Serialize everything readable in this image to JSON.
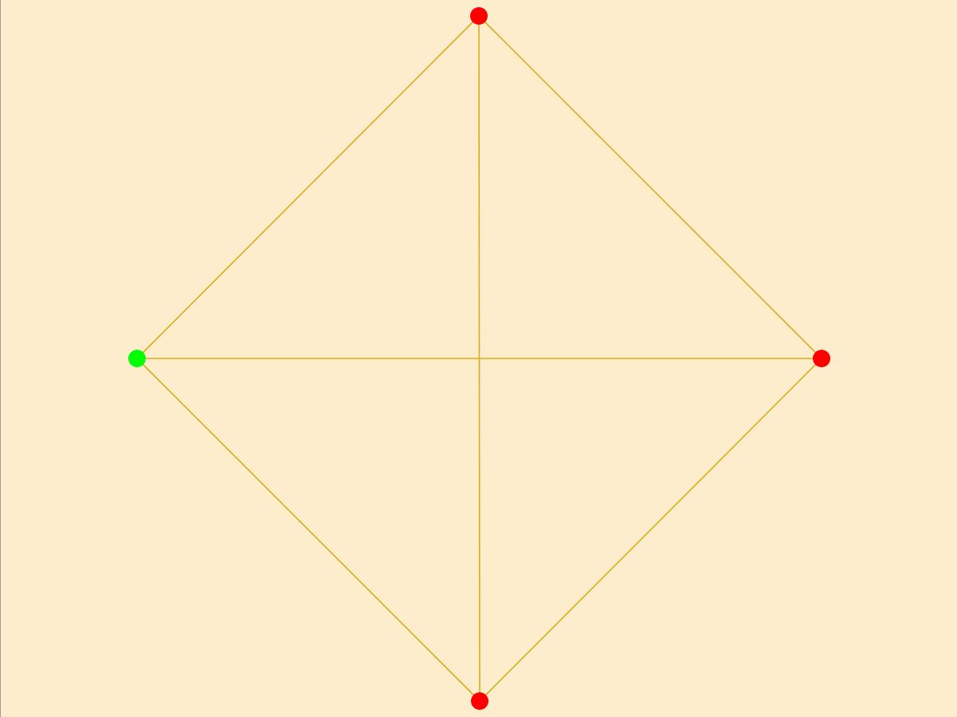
{
  "colors": {
    "background": "#fdedcc",
    "edge": "#d9ad1a",
    "node_red": "#ff0000",
    "node_green": "#00ff00"
  },
  "graph": {
    "nodes": [
      {
        "id": "top",
        "color": "red"
      },
      {
        "id": "left",
        "color": "green"
      },
      {
        "id": "right",
        "color": "red"
      },
      {
        "id": "bottom",
        "color": "red"
      }
    ],
    "edges": [
      [
        "top",
        "left"
      ],
      [
        "top",
        "right"
      ],
      [
        "top",
        "bottom"
      ],
      [
        "left",
        "right"
      ],
      [
        "left",
        "bottom"
      ],
      [
        "right",
        "bottom"
      ]
    ]
  }
}
